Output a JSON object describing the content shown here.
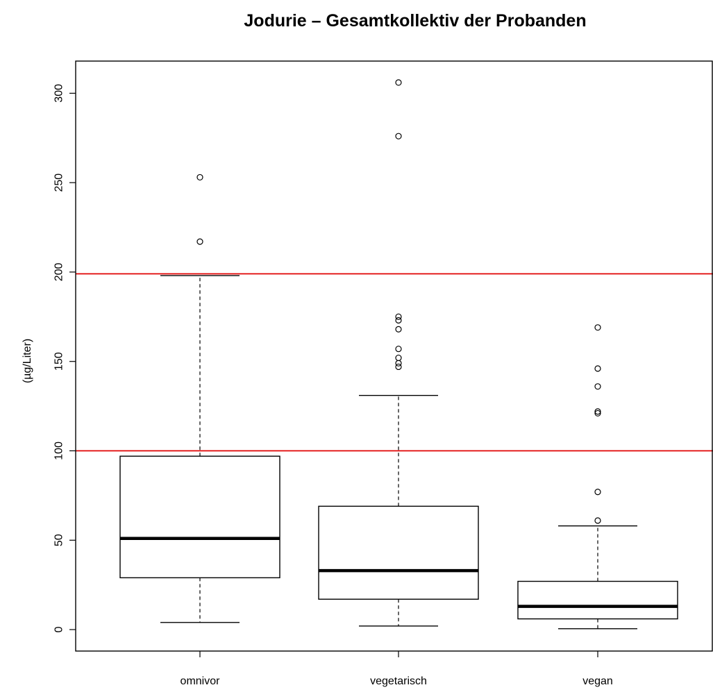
{
  "chart_data": {
    "type": "boxplot",
    "title": "Jodurie – Gesamtkollektiv der Probanden",
    "xlabel": "",
    "ylabel": "(µg/Liter)",
    "ylim": [
      -12,
      318
    ],
    "yticks": [
      0,
      50,
      100,
      150,
      200,
      250,
      300
    ],
    "categories": [
      "omnivor",
      "vegetarisch",
      "vegan"
    ],
    "boxes": [
      {
        "category": "omnivor",
        "whisker_low": 4,
        "q1": 29,
        "median": 51,
        "q3": 97,
        "whisker_high": 198,
        "outliers": [
          217,
          253
        ]
      },
      {
        "category": "vegetarisch",
        "whisker_low": 2,
        "q1": 17,
        "median": 33,
        "q3": 69,
        "whisker_high": 131,
        "outliers": [
          147,
          149,
          152,
          157,
          168,
          173,
          175,
          276,
          306
        ]
      },
      {
        "category": "vegan",
        "whisker_low": 0.5,
        "q1": 6,
        "median": 13,
        "q3": 27,
        "whisker_high": 58,
        "outliers": [
          61,
          77,
          121,
          122,
          136,
          146,
          169
        ]
      }
    ],
    "reference_lines": [
      {
        "value": 100,
        "color": "#e00000"
      },
      {
        "value": 199,
        "color": "#e00000"
      }
    ],
    "grid": false,
    "legend": "none"
  }
}
